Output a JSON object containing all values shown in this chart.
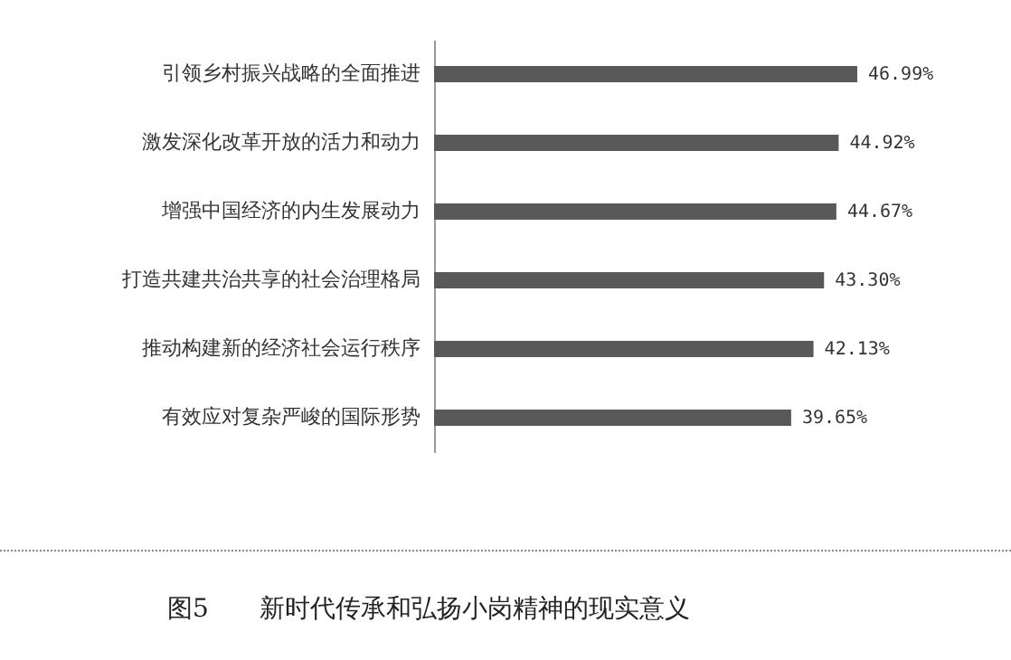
{
  "chart_data": {
    "type": "bar",
    "orientation": "horizontal",
    "title": "图5　　新时代传承和弘扬小岗精神的现实意义",
    "categories": [
      "引领乡村振兴战略的全面推进",
      "激发深化改革开放的活力和动力",
      "增强中国经济的内生发展动力",
      "打造共建共治共享的社会治理格局",
      "推动构建新的经济社会运行秩序",
      "有效应对复杂严峻的国际形势"
    ],
    "values": [
      46.99,
      44.92,
      44.67,
      43.3,
      42.13,
      39.65
    ],
    "value_labels": [
      "46.99%",
      "44.92%",
      "44.67%",
      "43.30%",
      "42.13%",
      "39.65%"
    ],
    "color": "#595959",
    "tick_labels": "y"
  }
}
